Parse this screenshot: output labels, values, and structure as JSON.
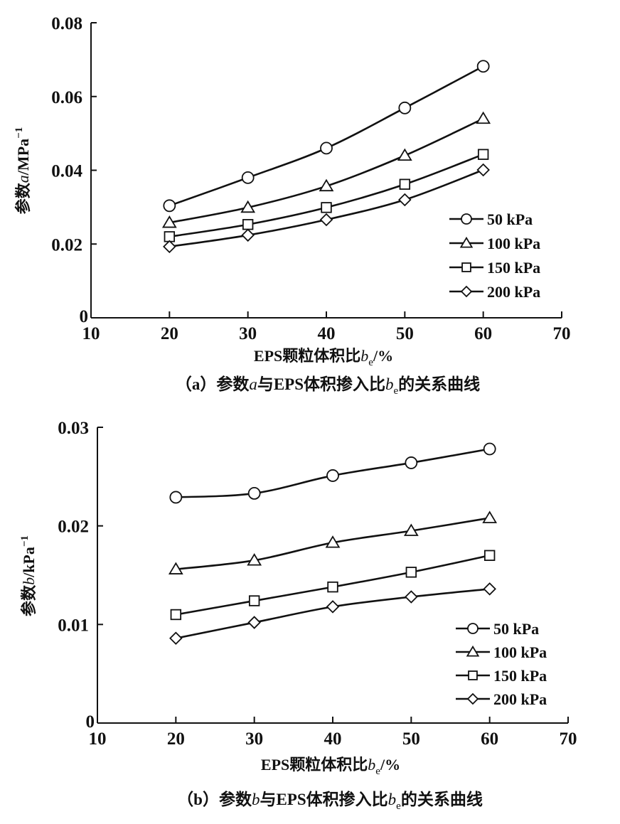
{
  "chart_data": [
    {
      "type": "line",
      "id": "a",
      "caption_prefix": "（a）参数",
      "caption_var": "a",
      "caption_mid": "与EPS体积掺入比",
      "caption_var2": "b",
      "caption_sub": "e",
      "caption_suffix": "的关系曲线",
      "xlabel_main": "EPS颗粒体积比",
      "xlabel_var": "b",
      "xlabel_sub": "e",
      "xlabel_unit": "/%",
      "ylabel_prefix": "参数",
      "ylabel_var": "a",
      "ylabel_unit": "/MPa",
      "ylabel_sup": "−1",
      "xlim": [
        10,
        70
      ],
      "ylim": [
        0,
        0.08
      ],
      "xticks": [
        "10",
        "20",
        "30",
        "40",
        "50",
        "60",
        "70"
      ],
      "yticks": [
        "0",
        "0.02",
        "0.04",
        "0.06",
        "0.08"
      ],
      "x": [
        20,
        30,
        40,
        50,
        60
      ],
      "legend_position": "right-middle",
      "series": [
        {
          "name": "50 kPa",
          "marker": "circle",
          "values": [
            0.0304,
            0.038,
            0.046,
            0.0569,
            0.0682
          ]
        },
        {
          "name": "100 kPa",
          "marker": "triangle",
          "values": [
            0.0258,
            0.0299,
            0.0357,
            0.044,
            0.054
          ]
        },
        {
          "name": "150 kPa",
          "marker": "square",
          "values": [
            0.022,
            0.0253,
            0.0299,
            0.0362,
            0.0443
          ]
        },
        {
          "name": "200 kPa",
          "marker": "diamond",
          "values": [
            0.0193,
            0.0224,
            0.0266,
            0.032,
            0.0401
          ]
        }
      ]
    },
    {
      "type": "line",
      "id": "b",
      "caption_prefix": "（b）参数",
      "caption_var": "b",
      "caption_mid": "与EPS体积掺入比",
      "caption_var2": "b",
      "caption_sub": "e",
      "caption_suffix": "的关系曲线",
      "xlabel_main": "EPS颗粒体积比",
      "xlabel_var": "b",
      "xlabel_sub": "e",
      "xlabel_unit": "/%",
      "ylabel_prefix": "参数",
      "ylabel_var": "b",
      "ylabel_unit": "/kPa",
      "ylabel_sup": "−1",
      "xlim": [
        10,
        70
      ],
      "ylim": [
        0,
        0.03
      ],
      "xticks": [
        "10",
        "20",
        "30",
        "40",
        "50",
        "60",
        "70"
      ],
      "yticks": [
        "0",
        "0.01",
        "0.02",
        "0.03"
      ],
      "x": [
        20,
        30,
        40,
        50,
        60
      ],
      "legend_position": "bottom-right",
      "series": [
        {
          "name": "50 kPa",
          "marker": "circle",
          "values": [
            0.0229,
            0.0233,
            0.0251,
            0.0264,
            0.0278
          ]
        },
        {
          "name": "100 kPa",
          "marker": "triangle",
          "values": [
            0.0156,
            0.0165,
            0.0183,
            0.0195,
            0.0208
          ]
        },
        {
          "name": "150 kPa",
          "marker": "square",
          "values": [
            0.011,
            0.0124,
            0.0138,
            0.0153,
            0.017
          ]
        },
        {
          "name": "200 kPa",
          "marker": "diamond",
          "values": [
            0.0086,
            0.0102,
            0.0118,
            0.0128,
            0.0136
          ]
        }
      ]
    }
  ]
}
